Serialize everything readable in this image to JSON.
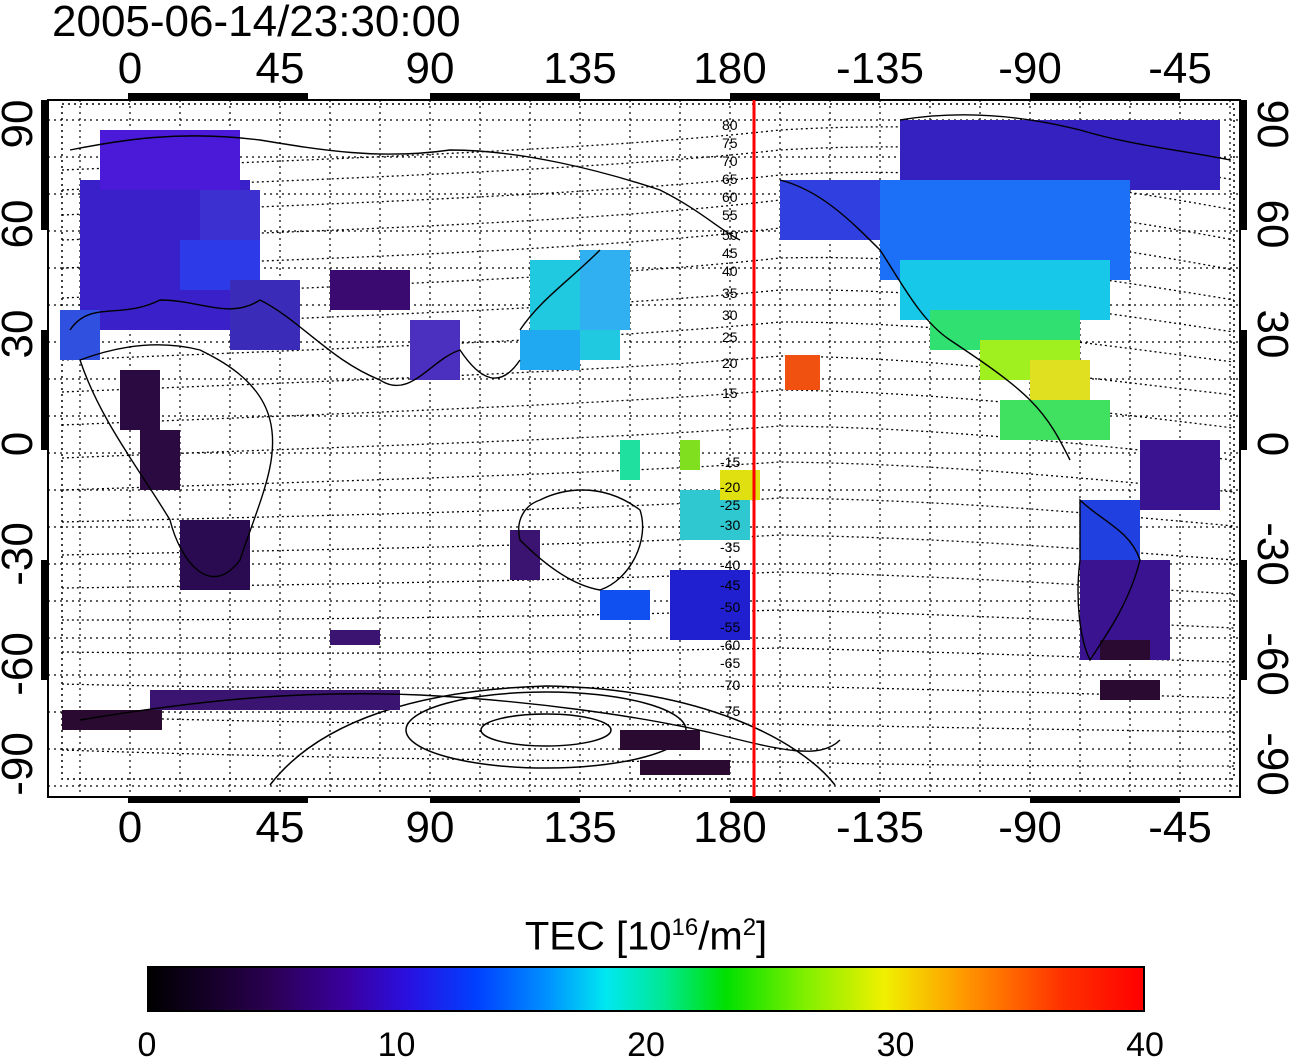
{
  "timestamp": "2005-06-14/23:30:00",
  "lon_ticks": [
    "0",
    "45",
    "90",
    "135",
    "180",
    "-135",
    "-90",
    "-45"
  ],
  "lat_ticks": [
    "90",
    "60",
    "30",
    "0",
    "-30",
    "-60",
    "-90"
  ],
  "contour_labels_north": [
    "80",
    "75",
    "70",
    "65",
    "60",
    "55",
    "50",
    "45",
    "40",
    "35",
    "30",
    "25",
    "20",
    "15"
  ],
  "contour_labels_south": [
    "-15",
    "-20",
    "-25",
    "-30",
    "-35",
    "-40",
    "-45",
    "-50",
    "-55",
    "-60",
    "-65",
    "-70",
    "-75"
  ],
  "colorbar": {
    "title_prefix": "TEC  [10",
    "title_sup1": "16",
    "title_mid": "/m",
    "title_sup2": "2",
    "title_suffix": "]",
    "ticks": [
      "0",
      "10",
      "20",
      "30",
      "40"
    ],
    "min": 0,
    "max": 40
  },
  "colors": {
    "meridian_line": "#ff0000",
    "grid": "#000000"
  },
  "meridian_longitude": 185
}
